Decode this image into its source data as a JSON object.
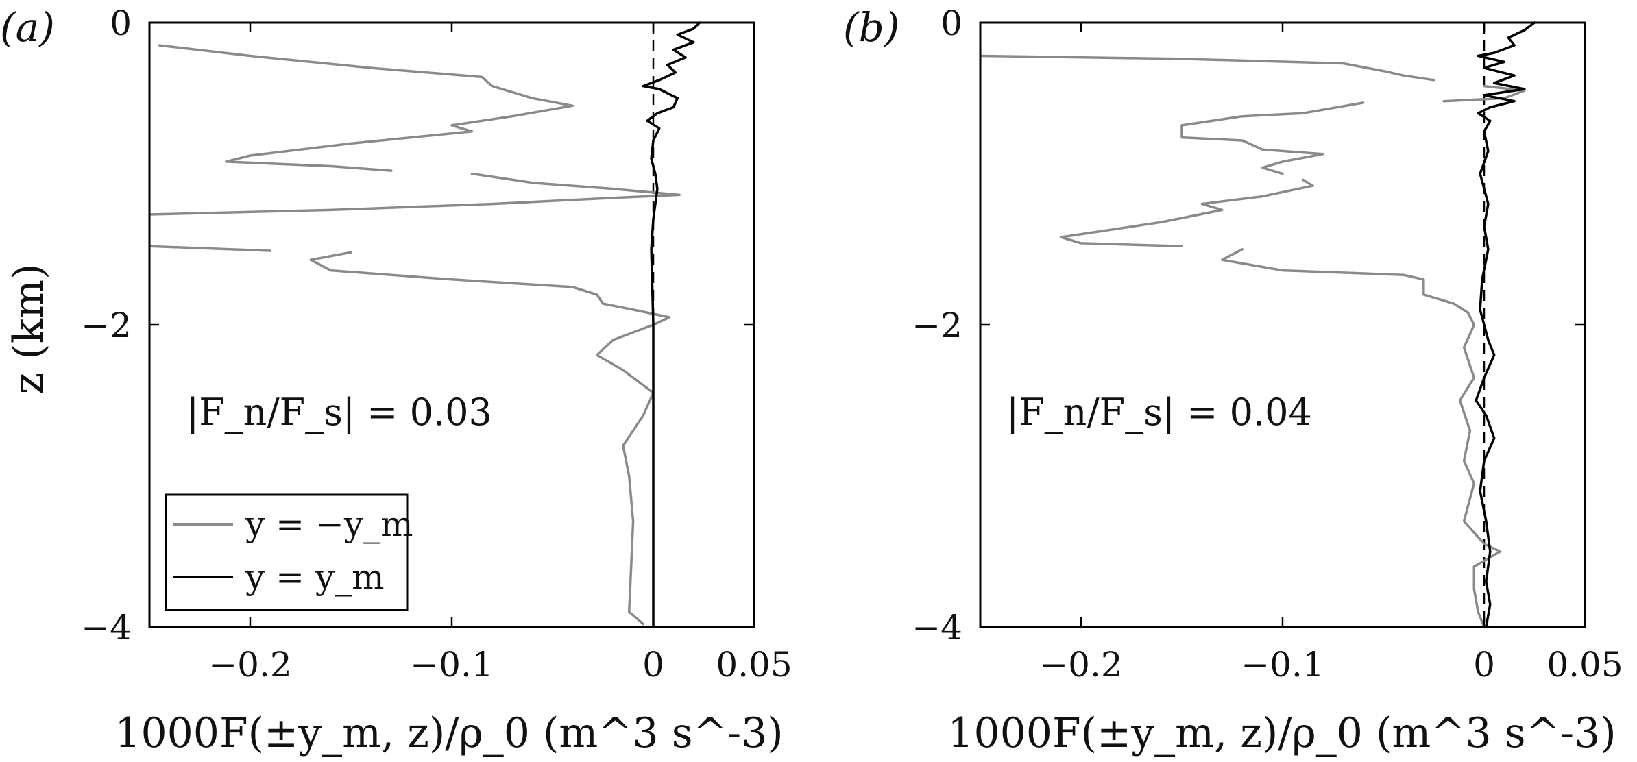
{
  "colors": {
    "south": "#8a8a8a",
    "north": "#000000",
    "background": "#ffffff"
  },
  "chart_data": [
    {
      "type": "line",
      "panel_label": "(a)",
      "xlabel": "1000F(±y_m, z)/ρ_0 (m^3 s^-3)",
      "ylabel": "z (km)",
      "xlim": [
        -0.25,
        0.05
      ],
      "ylim": [
        -4,
        0
      ],
      "x_ticks": [
        -0.2,
        -0.1,
        0,
        0.05
      ],
      "x_tick_labels": [
        "−0.2",
        "−0.1",
        "0",
        "0.05"
      ],
      "y_ticks": [
        0,
        -2,
        -4
      ],
      "y_tick_labels": [
        "0",
        "−2",
        "−4"
      ],
      "annotation": "|F_n/F_s| = 0.03",
      "legend": {
        "position": "bottom-left",
        "entries": [
          {
            "label": "y = −y_m",
            "color": "#8a8a8a"
          },
          {
            "label": "y = y_m",
            "color": "#000000"
          }
        ]
      },
      "zero_line": {
        "x": 0,
        "style": "dashed"
      },
      "series": [
        {
          "name": "y = −y_m",
          "color": "#8a8a8a",
          "points": [
            [
              -0.245,
              -0.15
            ],
            [
              -0.2,
              -0.22
            ],
            [
              -0.14,
              -0.3
            ],
            [
              -0.085,
              -0.36
            ],
            [
              -0.08,
              -0.42
            ],
            [
              -0.06,
              -0.5
            ],
            [
              -0.04,
              -0.55
            ],
            [
              -0.07,
              -0.62
            ],
            [
              -0.1,
              -0.68
            ],
            [
              -0.09,
              -0.72
            ],
            [
              -0.15,
              -0.8
            ],
            [
              -0.2,
              -0.88
            ],
            [
              -0.212,
              -0.92
            ],
            [
              -0.16,
              -0.95
            ],
            [
              -0.13,
              -0.98
            ],
            null,
            [
              -0.09,
              -1.0
            ],
            [
              -0.06,
              -1.06
            ],
            [
              -0.02,
              -1.1
            ],
            [
              0.013,
              -1.14
            ],
            [
              -0.02,
              -1.16
            ],
            [
              -0.08,
              -1.2
            ],
            [
              -0.16,
              -1.24
            ],
            [
              -0.25,
              -1.27
            ],
            null,
            [
              -0.25,
              -1.48
            ],
            [
              -0.21,
              -1.5
            ],
            [
              -0.19,
              -1.51
            ],
            null,
            [
              -0.15,
              -1.52
            ],
            [
              -0.17,
              -1.57
            ],
            [
              -0.16,
              -1.64
            ],
            [
              -0.1,
              -1.7
            ],
            [
              -0.04,
              -1.75
            ],
            [
              -0.028,
              -1.8
            ],
            [
              -0.025,
              -1.86
            ],
            [
              -0.01,
              -1.9
            ],
            [
              0.008,
              -1.95
            ],
            [
              0.0,
              -2.0
            ],
            [
              -0.01,
              -2.05
            ],
            [
              -0.02,
              -2.1
            ],
            [
              -0.028,
              -2.2
            ],
            [
              -0.015,
              -2.3
            ],
            [
              0.0,
              -2.45
            ],
            [
              -0.005,
              -2.6
            ],
            [
              -0.015,
              -2.8
            ],
            [
              -0.012,
              -3.0
            ],
            [
              -0.01,
              -3.3
            ],
            [
              -0.011,
              -3.6
            ],
            [
              -0.012,
              -3.9
            ],
            [
              -0.005,
              -3.98
            ]
          ]
        },
        {
          "name": "y = y_m",
          "color": "#000000",
          "points": [
            [
              0.023,
              0.0
            ],
            [
              0.02,
              -0.04
            ],
            [
              0.012,
              -0.08
            ],
            [
              0.02,
              -0.13
            ],
            [
              0.01,
              -0.18
            ],
            [
              0.016,
              -0.23
            ],
            [
              0.007,
              -0.28
            ],
            [
              0.011,
              -0.33
            ],
            [
              0.003,
              -0.38
            ],
            [
              -0.005,
              -0.42
            ],
            [
              0.003,
              -0.44
            ],
            [
              0.012,
              -0.5
            ],
            [
              0.01,
              -0.56
            ],
            [
              0.002,
              -0.6
            ],
            [
              -0.003,
              -0.65
            ],
            [
              0.003,
              -0.7
            ],
            [
              0.0,
              -0.78
            ],
            [
              -0.001,
              -0.9
            ],
            [
              0.001,
              -1.0
            ],
            [
              0.002,
              -1.1
            ],
            [
              0.0,
              -1.3
            ],
            [
              -0.001,
              -1.5
            ],
            [
              0.0,
              -2.0
            ],
            [
              0.0,
              -3.0
            ],
            [
              0.0,
              -4.0
            ]
          ]
        }
      ]
    },
    {
      "type": "line",
      "panel_label": "(b)",
      "xlabel": "1000F(±y_m, z)/ρ_0 (m^3 s^-3)",
      "ylabel": "",
      "xlim": [
        -0.25,
        0.05
      ],
      "ylim": [
        -4,
        0
      ],
      "x_ticks": [
        -0.2,
        -0.1,
        0,
        0.05
      ],
      "x_tick_labels": [
        "−0.2",
        "−0.1",
        "0",
        "0.05"
      ],
      "y_ticks": [
        0,
        -2,
        -4
      ],
      "y_tick_labels": [
        "0",
        "−2",
        "−4"
      ],
      "annotation": "|F_n/F_s| = 0.04",
      "zero_line": {
        "x": 0,
        "style": "dashed"
      },
      "series": [
        {
          "name": "y = −y_m",
          "color": "#8a8a8a",
          "points": [
            [
              -0.25,
              -0.22
            ],
            [
              -0.15,
              -0.24
            ],
            [
              -0.07,
              -0.27
            ],
            [
              -0.05,
              -0.32
            ],
            [
              -0.04,
              -0.35
            ],
            [
              -0.025,
              -0.38
            ],
            null,
            [
              0.0,
              -0.42
            ],
            [
              0.02,
              -0.45
            ],
            [
              0.01,
              -0.5
            ],
            [
              -0.02,
              -0.52
            ],
            null,
            [
              -0.06,
              -0.53
            ],
            [
              -0.09,
              -0.6
            ],
            [
              -0.12,
              -0.62
            ],
            [
              -0.15,
              -0.68
            ],
            [
              -0.15,
              -0.76
            ],
            [
              -0.12,
              -0.78
            ],
            [
              -0.11,
              -0.84
            ],
            [
              -0.08,
              -0.87
            ],
            [
              -0.1,
              -0.92
            ],
            [
              -0.11,
              -0.96
            ],
            [
              -0.1,
              -1.0
            ],
            null,
            [
              -0.09,
              -1.04
            ],
            [
              -0.085,
              -1.08
            ],
            [
              -0.11,
              -1.15
            ],
            [
              -0.14,
              -1.2
            ],
            [
              -0.13,
              -1.24
            ],
            [
              -0.16,
              -1.32
            ],
            [
              -0.21,
              -1.42
            ],
            [
              -0.2,
              -1.46
            ],
            [
              -0.15,
              -1.48
            ],
            null,
            [
              -0.12,
              -1.5
            ],
            [
              -0.13,
              -1.57
            ],
            [
              -0.1,
              -1.64
            ],
            [
              -0.04,
              -1.67
            ],
            [
              -0.03,
              -1.7
            ],
            [
              -0.03,
              -1.8
            ],
            [
              -0.015,
              -1.86
            ],
            [
              -0.008,
              -1.92
            ],
            [
              -0.005,
              -2.0
            ],
            [
              -0.01,
              -2.15
            ],
            [
              -0.005,
              -2.35
            ],
            [
              -0.012,
              -2.5
            ],
            [
              -0.007,
              -2.7
            ],
            [
              -0.01,
              -2.9
            ],
            [
              -0.005,
              -3.05
            ],
            [
              -0.01,
              -3.3
            ],
            [
              0.0,
              -3.45
            ],
            [
              0.008,
              -3.5
            ],
            [
              -0.005,
              -3.6
            ],
            [
              -0.005,
              -3.75
            ],
            [
              -0.003,
              -3.9
            ],
            [
              0.0,
              -4.0
            ]
          ]
        },
        {
          "name": "y = y_m",
          "color": "#000000",
          "points": [
            [
              0.025,
              0.0
            ],
            [
              0.02,
              -0.05
            ],
            [
              0.012,
              -0.1
            ],
            [
              0.015,
              -0.15
            ],
            [
              0.005,
              -0.2
            ],
            [
              -0.003,
              -0.22
            ],
            [
              0.01,
              -0.26
            ],
            [
              0.0,
              -0.3
            ],
            [
              0.015,
              -0.35
            ],
            [
              0.005,
              -0.4
            ],
            [
              0.02,
              -0.44
            ],
            [
              0.0,
              -0.48
            ],
            [
              0.015,
              -0.52
            ],
            [
              0.003,
              -0.56
            ],
            [
              -0.003,
              -0.6
            ],
            [
              0.003,
              -0.65
            ],
            [
              0.0,
              -0.72
            ],
            [
              0.002,
              -0.85
            ],
            [
              -0.002,
              -1.0
            ],
            [
              0.002,
              -1.2
            ],
            [
              0.0,
              -1.35
            ],
            [
              0.002,
              -1.5
            ],
            [
              -0.001,
              -1.7
            ],
            [
              -0.002,
              -1.9
            ],
            [
              0.002,
              -2.1
            ],
            [
              0.005,
              -2.2
            ],
            [
              0.0,
              -2.35
            ],
            [
              -0.004,
              -2.5
            ],
            [
              0.001,
              -2.6
            ],
            [
              0.005,
              -2.75
            ],
            [
              0.0,
              -2.9
            ],
            [
              -0.002,
              -3.1
            ],
            [
              0.001,
              -3.3
            ],
            [
              0.003,
              -3.5
            ],
            [
              0.001,
              -3.7
            ],
            [
              0.003,
              -3.85
            ],
            [
              0.001,
              -4.0
            ]
          ]
        }
      ]
    }
  ]
}
